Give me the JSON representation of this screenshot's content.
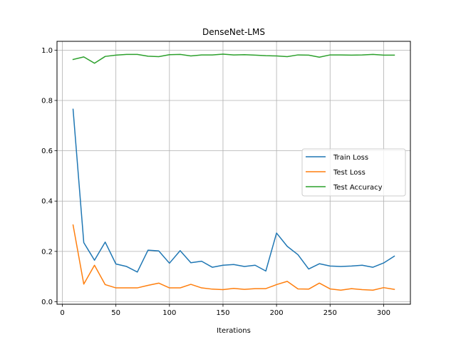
{
  "chart_data": {
    "type": "line",
    "title": "DenseNet-LMS",
    "xlabel": "Iterations",
    "ylabel": "",
    "xlim": [
      -5,
      325
    ],
    "ylim": [
      -0.01,
      1.035
    ],
    "xticks": [
      0,
      50,
      100,
      150,
      200,
      250,
      300
    ],
    "yticks": [
      0.0,
      0.2,
      0.4,
      0.6,
      0.8,
      1.0
    ],
    "xtick_labels": [
      "0",
      "50",
      "100",
      "150",
      "200",
      "250",
      "300"
    ],
    "ytick_labels": [
      "0.0",
      "0.2",
      "0.4",
      "0.6",
      "0.8",
      "1.0"
    ],
    "grid": true,
    "legend_position": "center-right",
    "x": [
      10,
      20,
      30,
      40,
      50,
      60,
      70,
      80,
      90,
      100,
      110,
      120,
      130,
      140,
      150,
      160,
      170,
      180,
      190,
      200,
      210,
      220,
      230,
      240,
      250,
      260,
      270,
      280,
      290,
      300,
      310
    ],
    "series": [
      {
        "name": "Train Loss",
        "color": "#1f77b4",
        "values": [
          0.765,
          0.235,
          0.165,
          0.237,
          0.15,
          0.14,
          0.118,
          0.205,
          0.202,
          0.153,
          0.203,
          0.155,
          0.161,
          0.137,
          0.145,
          0.148,
          0.14,
          0.145,
          0.122,
          0.273,
          0.22,
          0.187,
          0.13,
          0.151,
          0.142,
          0.14,
          0.142,
          0.145,
          0.137,
          0.154,
          0.181
        ]
      },
      {
        "name": "Test Loss",
        "color": "#ff7f0e",
        "values": [
          0.305,
          0.07,
          0.145,
          0.068,
          0.055,
          0.055,
          0.055,
          0.065,
          0.074,
          0.055,
          0.055,
          0.069,
          0.055,
          0.05,
          0.048,
          0.053,
          0.049,
          0.052,
          0.052,
          0.068,
          0.081,
          0.051,
          0.05,
          0.074,
          0.051,
          0.046,
          0.052,
          0.048,
          0.046,
          0.056,
          0.049
        ]
      },
      {
        "name": "Test Accuracy",
        "color": "#2ca02c",
        "values": [
          0.963,
          0.973,
          0.948,
          0.975,
          0.98,
          0.983,
          0.983,
          0.976,
          0.974,
          0.982,
          0.983,
          0.977,
          0.981,
          0.981,
          0.984,
          0.981,
          0.982,
          0.98,
          0.978,
          0.977,
          0.974,
          0.981,
          0.98,
          0.972,
          0.981,
          0.981,
          0.98,
          0.981,
          0.983,
          0.98,
          0.98
        ]
      }
    ]
  }
}
